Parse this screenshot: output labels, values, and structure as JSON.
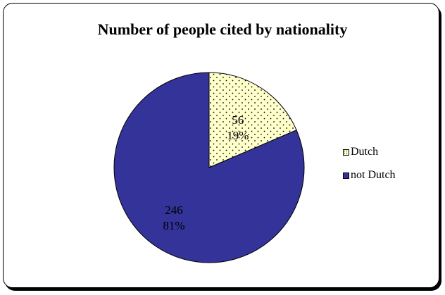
{
  "chart_data": {
    "type": "pie",
    "title": "Number of people cited by nationality",
    "categories": [
      "Dutch",
      "not Dutch"
    ],
    "values": [
      56,
      246
    ],
    "percent_labels": [
      "19%",
      "81%"
    ],
    "colors": [
      "#ffffcc",
      "#333399"
    ],
    "patterns": [
      "dotted",
      "solid"
    ],
    "legend_position": "right",
    "start_angle": "12 o'clock",
    "direction": "clockwise"
  }
}
